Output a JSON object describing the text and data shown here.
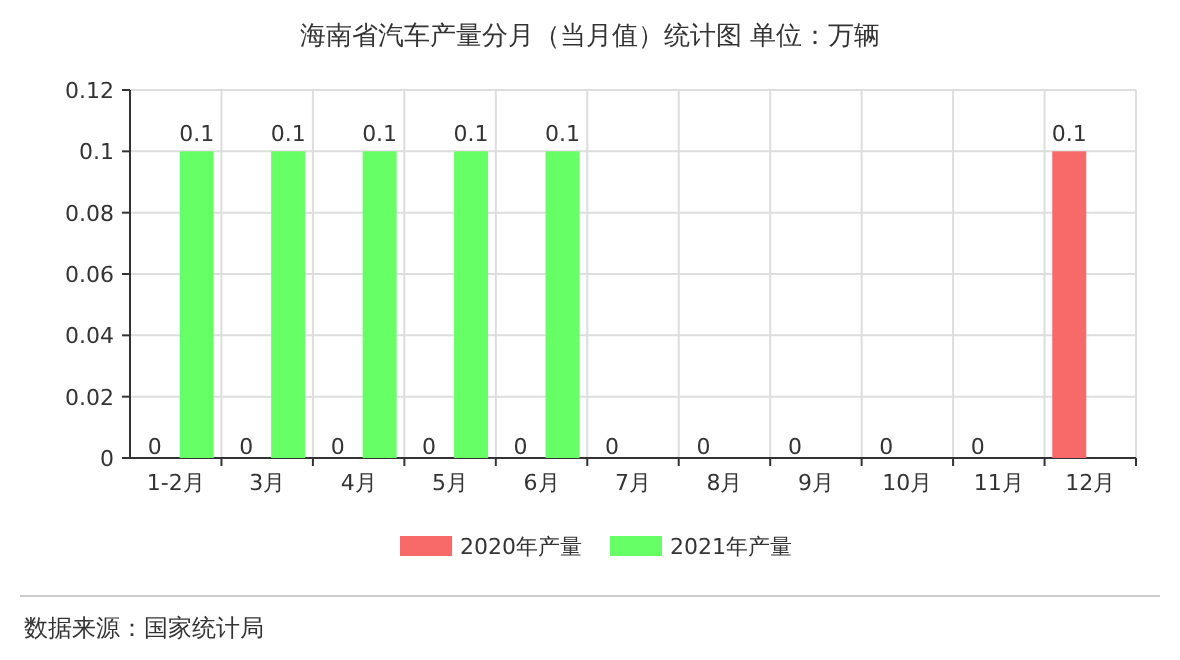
{
  "chart_data": {
    "type": "bar",
    "title": "海南省汽车产量分月（当月值）统计图 单位：万辆",
    "categories": [
      "1-2月",
      "3月",
      "4月",
      "5月",
      "6月",
      "7月",
      "8月",
      "9月",
      "10月",
      "11月",
      "12月"
    ],
    "series": [
      {
        "name": "2020年产量",
        "color": "#f86a6a",
        "values": [
          0,
          0,
          0,
          0,
          0,
          0,
          0,
          0,
          0,
          0,
          0.1
        ]
      },
      {
        "name": "2021年产量",
        "color": "#66ff66",
        "values": [
          0.1,
          0.1,
          0.1,
          0.1,
          0.1,
          null,
          null,
          null,
          null,
          null,
          null
        ]
      }
    ],
    "ylim": [
      0,
      0.12
    ],
    "yticks": [
      0,
      0.02,
      0.04,
      0.06,
      0.08,
      0.1,
      0.12
    ],
    "grid": true,
    "legend": "bottom",
    "data_labels": true,
    "annotations": [
      "数据来源：国家统计局"
    ]
  }
}
